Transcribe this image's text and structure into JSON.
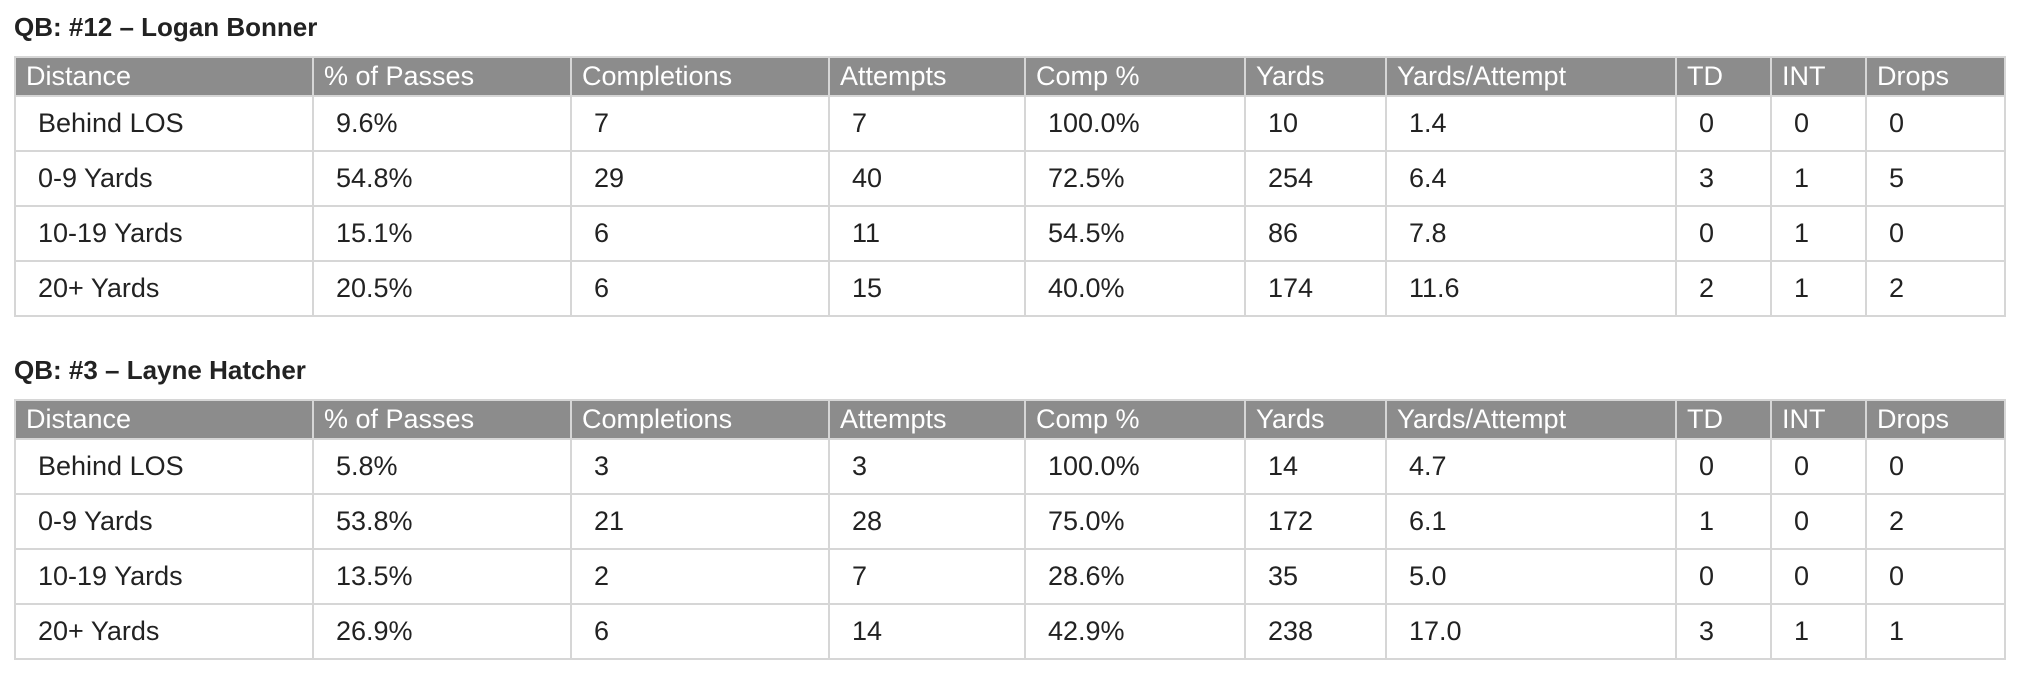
{
  "columns": [
    "Distance",
    "% of Passes",
    "Completions",
    "Attempts",
    "Comp %",
    "Yards",
    "Yards/Attempt",
    "TD",
    "INT",
    "Drops"
  ],
  "tables": [
    {
      "title": "QB: #12 – Logan Bonner",
      "rows": [
        [
          "Behind LOS",
          "9.6%",
          "7",
          "7",
          "100.0%",
          "10",
          "1.4",
          "0",
          "0",
          "0"
        ],
        [
          "0-9 Yards",
          "54.8%",
          "29",
          "40",
          "72.5%",
          "254",
          "6.4",
          "3",
          "1",
          "5"
        ],
        [
          "10-19 Yards",
          "15.1%",
          "6",
          "11",
          "54.5%",
          "86",
          "7.8",
          "0",
          "1",
          "0"
        ],
        [
          "20+ Yards",
          "20.5%",
          "6",
          "15",
          "40.0%",
          "174",
          "11.6",
          "2",
          "1",
          "2"
        ]
      ]
    },
    {
      "title": "QB: #3 – Layne Hatcher",
      "rows": [
        [
          "Behind LOS",
          "5.8%",
          "3",
          "3",
          "100.0%",
          "14",
          "4.7",
          "0",
          "0",
          "0"
        ],
        [
          "0-9 Yards",
          "53.8%",
          "21",
          "28",
          "75.0%",
          "172",
          "6.1",
          "1",
          "0",
          "2"
        ],
        [
          "10-19 Yards",
          "13.5%",
          "2",
          "7",
          "28.6%",
          "35",
          "5.0",
          "0",
          "0",
          "0"
        ],
        [
          "20+ Yards",
          "26.9%",
          "6",
          "14",
          "42.9%",
          "238",
          "17.0",
          "3",
          "1",
          "1"
        ]
      ]
    }
  ]
}
